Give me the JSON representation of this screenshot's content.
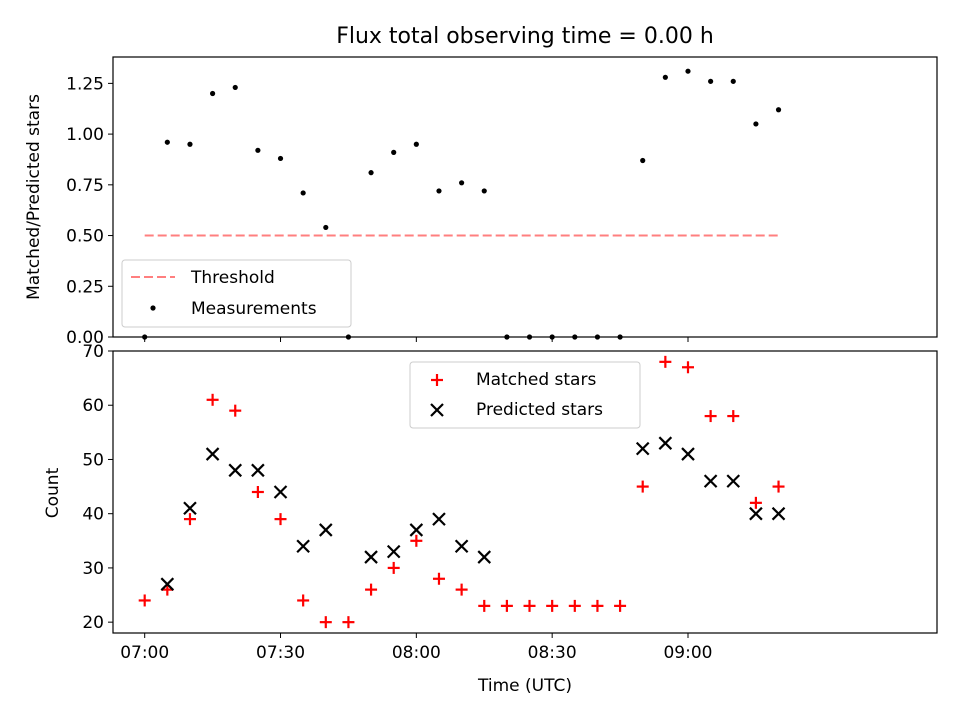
{
  "figure_title": "Flux total observing time = 0.00 h",
  "colors": {
    "threshold": "#ff7f7f",
    "measurement": "#000000",
    "matched": "#ff0000",
    "predicted": "#000000"
  },
  "chart_data": [
    {
      "type": "scatter",
      "title": "Flux total observing time = 0.00 h",
      "ylabel": "Matched/Predicted stars",
      "xlabel": "",
      "xlim": [
        "06:53",
        "09:55"
      ],
      "ylim": [
        0,
        1.38
      ],
      "yticks": [
        0.0,
        0.25,
        0.5,
        0.75,
        1.0,
        1.25
      ],
      "ytick_labels": [
        "0.00",
        "0.25",
        "0.50",
        "0.75",
        "1.00",
        "1.25"
      ],
      "xticks": [
        "07:00",
        "07:30",
        "08:00",
        "08:30",
        "09:00"
      ],
      "grid": false,
      "legend_position": "lower-left",
      "series": [
        {
          "name": "Threshold",
          "kind": "line",
          "style": "dashed",
          "color": "#ff7f7f",
          "x": [
            "07:00",
            "09:20"
          ],
          "values": [
            0.5,
            0.5
          ]
        },
        {
          "name": "Measurements",
          "kind": "scatter",
          "marker": "dot",
          "color": "#000000",
          "x": [
            "07:00",
            "07:05",
            "07:10",
            "07:15",
            "07:20",
            "07:25",
            "07:30",
            "07:35",
            "07:40",
            "07:45",
            "07:50",
            "07:55",
            "08:00",
            "08:05",
            "08:10",
            "08:15",
            "08:20",
            "08:25",
            "08:30",
            "08:35",
            "08:40",
            "08:45",
            "08:50",
            "08:55",
            "09:00",
            "09:05",
            "09:10",
            "09:15",
            "09:20"
          ],
          "values": [
            0.0,
            0.96,
            0.95,
            1.2,
            1.23,
            0.92,
            0.88,
            0.71,
            0.54,
            0.0,
            0.81,
            0.91,
            0.95,
            0.72,
            0.76,
            0.72,
            0.0,
            0.0,
            0.0,
            0.0,
            0.0,
            0.0,
            0.87,
            1.28,
            1.31,
            1.26,
            1.26,
            1.05,
            1.12
          ]
        }
      ]
    },
    {
      "type": "scatter",
      "title": "",
      "ylabel": "Count",
      "xlabel": "Time (UTC)",
      "xlim": [
        "06:53",
        "09:55"
      ],
      "ylim": [
        18,
        70
      ],
      "yticks": [
        20,
        30,
        40,
        50,
        60,
        70
      ],
      "ytick_labels": [
        "20",
        "30",
        "40",
        "50",
        "60",
        "70"
      ],
      "xticks": [
        "07:00",
        "07:30",
        "08:00",
        "08:30",
        "09:00"
      ],
      "grid": false,
      "legend_position": "top-center",
      "series": [
        {
          "name": "Matched stars",
          "kind": "scatter",
          "marker": "plus",
          "color": "#ff0000",
          "x": [
            "07:00",
            "07:05",
            "07:10",
            "07:15",
            "07:20",
            "07:25",
            "07:30",
            "07:35",
            "07:40",
            "07:45",
            "07:50",
            "07:55",
            "08:00",
            "08:05",
            "08:10",
            "08:15",
            "08:20",
            "08:25",
            "08:30",
            "08:35",
            "08:40",
            "08:45",
            "08:50",
            "08:55",
            "09:00",
            "09:05",
            "09:10",
            "09:15",
            "09:20"
          ],
          "values": [
            24,
            26,
            39,
            61,
            59,
            44,
            39,
            24,
            20,
            20,
            26,
            30,
            35,
            28,
            26,
            23,
            23,
            23,
            23,
            23,
            23,
            23,
            45,
            68,
            67,
            58,
            58,
            42,
            45
          ]
        },
        {
          "name": "Predicted stars",
          "kind": "scatter",
          "marker": "x",
          "color": "#000000",
          "x": [
            "07:05",
            "07:10",
            "07:15",
            "07:20",
            "07:25",
            "07:30",
            "07:35",
            "07:40",
            "07:50",
            "07:55",
            "08:00",
            "08:05",
            "08:10",
            "08:15",
            "08:50",
            "08:55",
            "09:00",
            "09:05",
            "09:10",
            "09:15",
            "09:20"
          ],
          "values": [
            27,
            41,
            51,
            48,
            48,
            44,
            34,
            37,
            32,
            33,
            37,
            39,
            34,
            32,
            52,
            53,
            51,
            46,
            46,
            40,
            40
          ]
        }
      ]
    }
  ]
}
